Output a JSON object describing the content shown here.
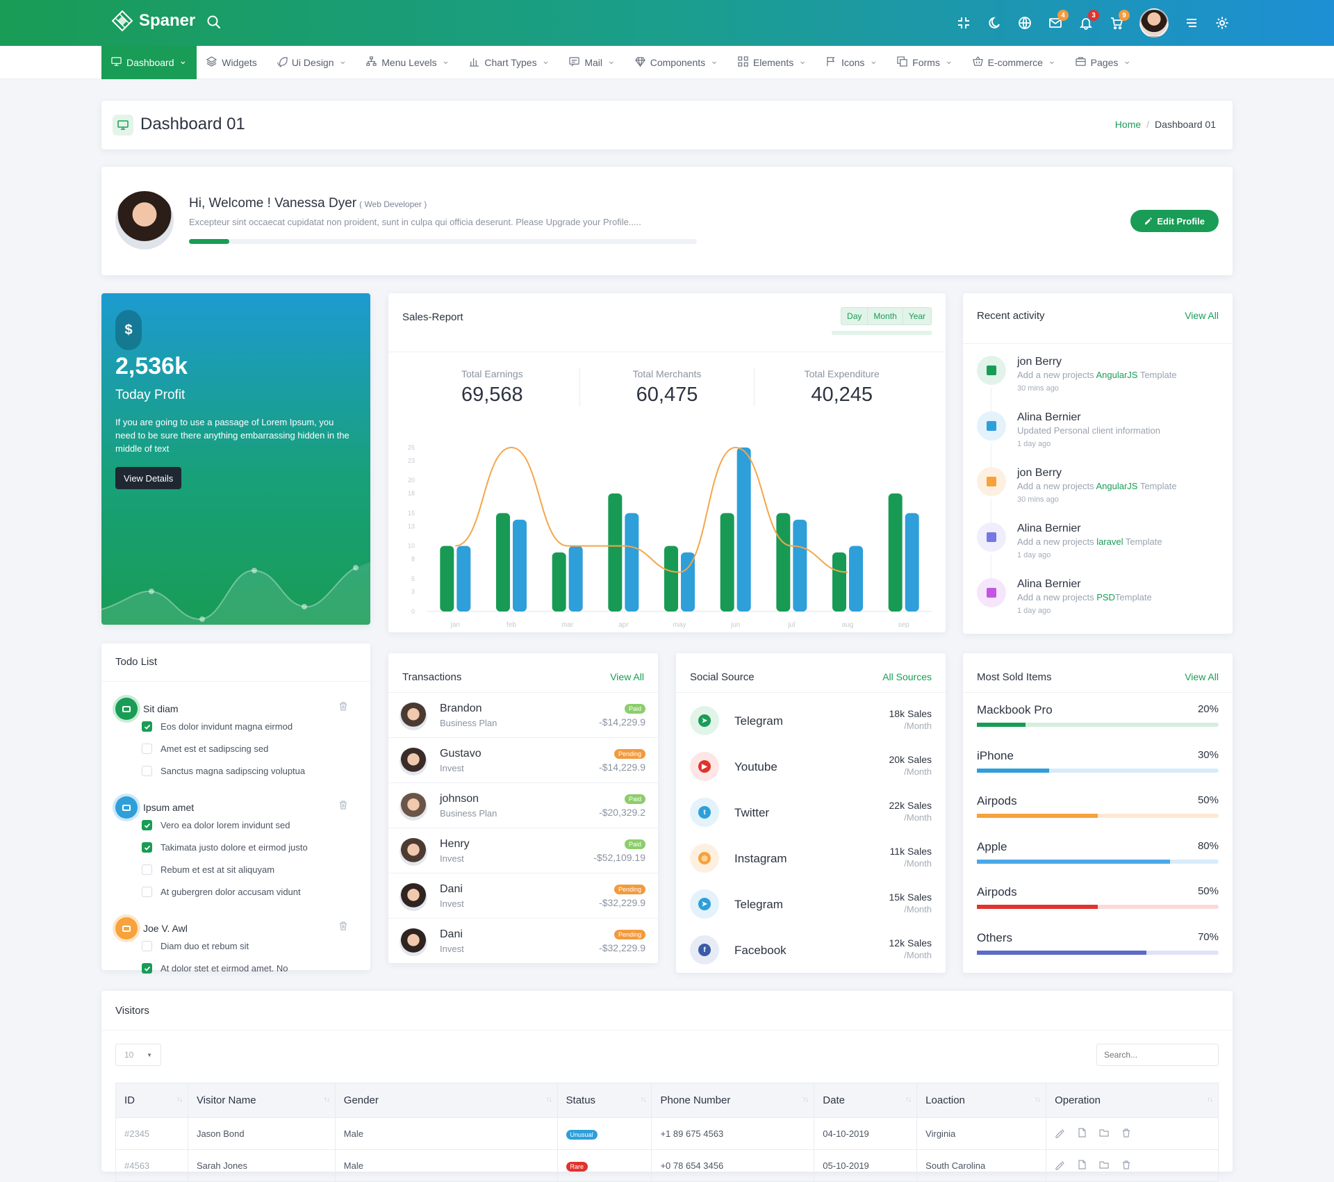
{
  "brand": {
    "name": "Spaner"
  },
  "topbar": {
    "badges": {
      "mail": "4",
      "notifications": "3",
      "cart": "9"
    },
    "icons": [
      "fullscreen-icon",
      "moon-icon",
      "globe-icon",
      "mail-icon",
      "bell-icon",
      "cart-icon",
      "menu-icon",
      "gear-icon"
    ]
  },
  "nav": [
    {
      "label": "Dashboard",
      "icon": "monitor-icon",
      "active": true
    },
    {
      "label": "Widgets",
      "icon": "layers-icon"
    },
    {
      "label": "Ui Design",
      "icon": "rocket-icon"
    },
    {
      "label": "Menu Levels",
      "icon": "sitemap-icon"
    },
    {
      "label": "Chart Types",
      "icon": "bar-chart-icon"
    },
    {
      "label": "Mail",
      "icon": "message-icon"
    },
    {
      "label": "Components",
      "icon": "diamond-icon"
    },
    {
      "label": "Elements",
      "icon": "grid-icon"
    },
    {
      "label": "Icons",
      "icon": "flag-icon"
    },
    {
      "label": "Forms",
      "icon": "copy-icon"
    },
    {
      "label": "E-commerce",
      "icon": "shopping-basket-icon"
    },
    {
      "label": "Pages",
      "icon": "briefcase-icon"
    }
  ],
  "page": {
    "title": "Dashboard 01",
    "crumb_home": "Home",
    "crumb_sep": "/",
    "crumb_current": "Dashboard 01"
  },
  "welcome": {
    "greeting": "Hi, Welcome ! Vanessa Dyer",
    "role": "( Web Developer )",
    "text": "Excepteur sint occaecat cupidatat non proident, sunt in culpa qui officia deserunt. Please Upgrade your Profile.....",
    "progress": 0.08,
    "button": "Edit Profile"
  },
  "profit": {
    "icon_text": "$",
    "value": "2,536k",
    "label": "Today Profit",
    "text": "If you are going to use a passage of Lorem Ipsum, you need to be sure there anything embarrassing hidden in the middle of text",
    "button": "View Details"
  },
  "sales": {
    "title": "Sales-Report",
    "ranges": [
      "Day",
      "Month",
      "Year"
    ],
    "stats": [
      {
        "label": "Total Earnings",
        "value": "69,568"
      },
      {
        "label": "Total Merchants",
        "value": "60,475"
      },
      {
        "label": "Total Expenditure",
        "value": "40,245"
      }
    ]
  },
  "chart_data": {
    "type": "bar",
    "categories": [
      "jan",
      "feb",
      "mar",
      "apr",
      "may",
      "jun",
      "jul",
      "aug",
      "sep"
    ],
    "yticks": [
      0,
      3,
      5,
      8,
      10,
      13,
      15,
      18,
      20,
      23,
      25
    ],
    "ylim": [
      0,
      25
    ],
    "series": [
      {
        "name": "",
        "color": "#189a55",
        "values": [
          10,
          15,
          9,
          18,
          10,
          15,
          15,
          9,
          18
        ]
      },
      {
        "name": "",
        "color": "#2e9fd9",
        "values": [
          10,
          14,
          10,
          15,
          9,
          25,
          14,
          10,
          15
        ]
      }
    ],
    "line": {
      "color": "#f4a64a",
      "values": [
        10,
        25,
        10,
        10,
        6,
        25,
        10,
        6,
        null
      ]
    }
  },
  "recent": {
    "title": "Recent activity",
    "link": "View All",
    "items": [
      {
        "name": "jon Berry",
        "desc": "Add a new projects ",
        "hl": "AngularJS",
        "tail": " Template",
        "time": "30 mins ago",
        "color": "#199c55",
        "bg": "#e2f4e9",
        "icon": "file-icon"
      },
      {
        "name": "Alina Bernier",
        "desc": "Updated Personal client information",
        "hl": "",
        "tail": "",
        "time": "1 day ago",
        "color": "#2e9fd9",
        "bg": "#e3f2fb",
        "icon": "id-card-icon"
      },
      {
        "name": "jon Berry",
        "desc": "Add a new projects ",
        "hl": "AngularJS",
        "tail": " Template",
        "time": "30 mins ago",
        "color": "#f7a23b",
        "bg": "#fdf0e1",
        "icon": "file-icon"
      },
      {
        "name": "Alina Bernier",
        "desc": "Add a new projects ",
        "hl": "laravel",
        "tail": " Template",
        "time": "1 day ago",
        "color": "#7676e6",
        "bg": "#eeeefc",
        "icon": "laravel-icon"
      },
      {
        "name": "Alina Bernier",
        "desc": "Add a new projects ",
        "hl": "PSD",
        "tail": "Template",
        "time": "1 day ago",
        "color": "#c355e0",
        "bg": "#f6e6fb",
        "icon": "image-icon"
      }
    ]
  },
  "todo": {
    "title": "Todo List",
    "groups": [
      {
        "name": "Sit diam",
        "color": "#199c55",
        "bg": "#c8ecd7",
        "items": [
          {
            "text": "Eos dolor invidunt magna eirmod",
            "checked": true
          },
          {
            "text": "Amet est et sadipscing sed",
            "checked": false
          },
          {
            "text": "Sanctus magna sadipscing voluptua",
            "checked": false
          }
        ]
      },
      {
        "name": "Ipsum amet",
        "color": "#2e9fd9",
        "bg": "#cde8f8",
        "items": [
          {
            "text": "Vero ea dolor lorem invidunt sed",
            "checked": true
          },
          {
            "text": "Takimata justo dolore et eirmod justo",
            "checked": true
          },
          {
            "text": "Rebum et est at sit aliquyam",
            "checked": false
          },
          {
            "text": "At gubergren dolor accusam vidunt",
            "checked": false
          }
        ]
      },
      {
        "name": "Joe V. Awl",
        "color": "#f7a23b",
        "bg": "#fde5c7",
        "items": [
          {
            "text": "Diam duo et rebum sit",
            "checked": false
          },
          {
            "text": "At dolor stet et eirmod amet. No",
            "checked": true
          }
        ]
      }
    ]
  },
  "transactions": {
    "title": "Transactions",
    "link": "View All",
    "rows": [
      {
        "name": "Brandon",
        "plan": "Business Plan",
        "status": "Paid",
        "amount": "-$14,229.9",
        "av": "#4a3a32"
      },
      {
        "name": "Gustavo",
        "plan": "Invest",
        "status": "Pending",
        "amount": "-$14,229.9",
        "av": "#3a2c28"
      },
      {
        "name": "johnson",
        "plan": "Business Plan",
        "status": "Paid",
        "amount": "-$20,329.2",
        "av": "#6a5548"
      },
      {
        "name": "Henry",
        "plan": "Invest",
        "status": "Paid",
        "amount": "-$52,109.19",
        "av": "#4d3b33"
      },
      {
        "name": "Dani",
        "plan": "Invest",
        "status": "Pending",
        "amount": "-$32,229.9",
        "av": "#2f2420"
      },
      {
        "name": "Dani",
        "plan": "Invest",
        "status": "Pending",
        "amount": "-$32,229.9",
        "av": "#2f2420"
      }
    ],
    "status_colors": {
      "Paid": "#8ccd6b",
      "Pending": "#f39a3d"
    }
  },
  "social": {
    "title": "Social Source",
    "link": "All Sources",
    "rows": [
      {
        "name": "Telegram",
        "sales": "18k Sales",
        "per": "/Month",
        "color": "#199c55",
        "bg": "#e2f4e9",
        "glyph": "➤",
        "icon": "telegram-icon"
      },
      {
        "name": "Youtube",
        "sales": "20k Sales",
        "per": "/Month",
        "color": "#e0332e",
        "bg": "#fde6e5",
        "glyph": "▶",
        "icon": "youtube-icon"
      },
      {
        "name": "Twitter",
        "sales": "22k Sales",
        "per": "/Month",
        "color": "#2e9fd9",
        "bg": "#e3f2fb",
        "glyph": "t",
        "icon": "twitter-icon"
      },
      {
        "name": "Instagram",
        "sales": "11k Sales",
        "per": "/Month",
        "color": "#f7a23b",
        "bg": "#fdf0e1",
        "glyph": "◎",
        "icon": "instagram-icon"
      },
      {
        "name": "Telegram",
        "sales": "15k Sales",
        "per": "/Month",
        "color": "#2e9fd9",
        "bg": "#e3f2fb",
        "glyph": "➤",
        "icon": "telegram-icon"
      },
      {
        "name": "Facebook",
        "sales": "12k Sales",
        "per": "/Month",
        "color": "#3a5ba8",
        "bg": "#e6ebf6",
        "glyph": "f",
        "icon": "facebook-icon"
      }
    ]
  },
  "most_sold": {
    "title": "Most Sold Items",
    "link": "View All",
    "items": [
      {
        "name": "Mackbook Pro",
        "pct": "20%",
        "value": 0.2,
        "color": "#199c55",
        "track": "#d4efdf"
      },
      {
        "name": "iPhone",
        "pct": "30%",
        "value": 0.3,
        "color": "#2e9fd9",
        "track": "#d6ecf9"
      },
      {
        "name": "Airpods",
        "pct": "50%",
        "value": 0.5,
        "color": "#f7a23b",
        "track": "#fde9d1"
      },
      {
        "name": "Apple",
        "pct": "80%",
        "value": 0.8,
        "color": "#4aa8e8",
        "track": "#d8ecfa"
      },
      {
        "name": "Airpods",
        "pct": "50%",
        "value": 0.5,
        "color": "#e0332e",
        "track": "#fbdada"
      },
      {
        "name": "Others",
        "pct": "70%",
        "value": 0.7,
        "color": "#5a6bc8",
        "track": "#dfe3f5"
      }
    ]
  },
  "visitors": {
    "title": "Visitors",
    "page_size": "10",
    "search_placeholder": "Search...",
    "columns": [
      "ID",
      "Visitor Name",
      "Gender",
      "Status",
      "Phone Number",
      "Date",
      "Loaction",
      "Operation"
    ],
    "rows": [
      {
        "id": "#2345",
        "name": "Jason Bond",
        "gender": "Male",
        "status": "Unusual",
        "status_color": "#2e9fd9",
        "phone": "+1 89 675 4563",
        "date": "04-10-2019",
        "location": "Virginia"
      },
      {
        "id": "#4563",
        "name": "Sarah Jones",
        "gender": "Male",
        "status": "Rare",
        "status_color": "#e0332e",
        "phone": "+0 78 654 3456",
        "date": "05-10-2019",
        "location": "South Carolina"
      }
    ]
  }
}
